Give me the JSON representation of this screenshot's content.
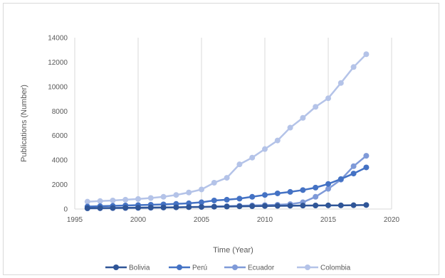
{
  "chart_data": {
    "type": "line",
    "title": "",
    "xlabel": "Time (Year)",
    "ylabel": "Publications (Number)",
    "xlim": [
      1995,
      2020
    ],
    "ylim": [
      0,
      14000
    ],
    "x_ticks": [
      "1995",
      "2000",
      "2005",
      "2010",
      "2015",
      "2020"
    ],
    "y_ticks": [
      "0",
      "2000",
      "4000",
      "6000",
      "8000",
      "10000",
      "12000",
      "14000"
    ],
    "grid": "vertical",
    "legend_position": "bottom",
    "x": [
      1996,
      1997,
      1998,
      1999,
      2000,
      2001,
      2002,
      2003,
      2004,
      2005,
      2006,
      2007,
      2008,
      2009,
      2010,
      2011,
      2012,
      2013,
      2014,
      2015,
      2016,
      2017,
      2018
    ],
    "series": [
      {
        "name": "Bolivia",
        "color": "#2f5597",
        "values": [
          70,
          80,
          90,
          100,
          110,
          120,
          130,
          140,
          160,
          170,
          190,
          200,
          220,
          230,
          250,
          260,
          270,
          280,
          290,
          300,
          300,
          310,
          330
        ]
      },
      {
        "name": "Perú",
        "color": "#4472c4",
        "values": [
          200,
          230,
          260,
          290,
          320,
          350,
          380,
          420,
          470,
          550,
          700,
          760,
          850,
          1000,
          1150,
          1280,
          1400,
          1550,
          1750,
          2050,
          2450,
          2900,
          3400
        ]
      },
      {
        "name": "Ecuador",
        "color": "#7f9ad8",
        "values": [
          50,
          60,
          70,
          80,
          90,
          100,
          120,
          140,
          160,
          180,
          200,
          230,
          270,
          300,
          320,
          350,
          400,
          550,
          1000,
          1650,
          2400,
          3500,
          4350
        ]
      },
      {
        "name": "Colombia",
        "color": "#b4c3e8",
        "values": [
          600,
          650,
          700,
          760,
          820,
          900,
          1000,
          1150,
          1350,
          1600,
          2150,
          2550,
          3650,
          4200,
          4900,
          5600,
          6650,
          7450,
          8350,
          9050,
          10300,
          11600,
          12650
        ]
      }
    ]
  }
}
